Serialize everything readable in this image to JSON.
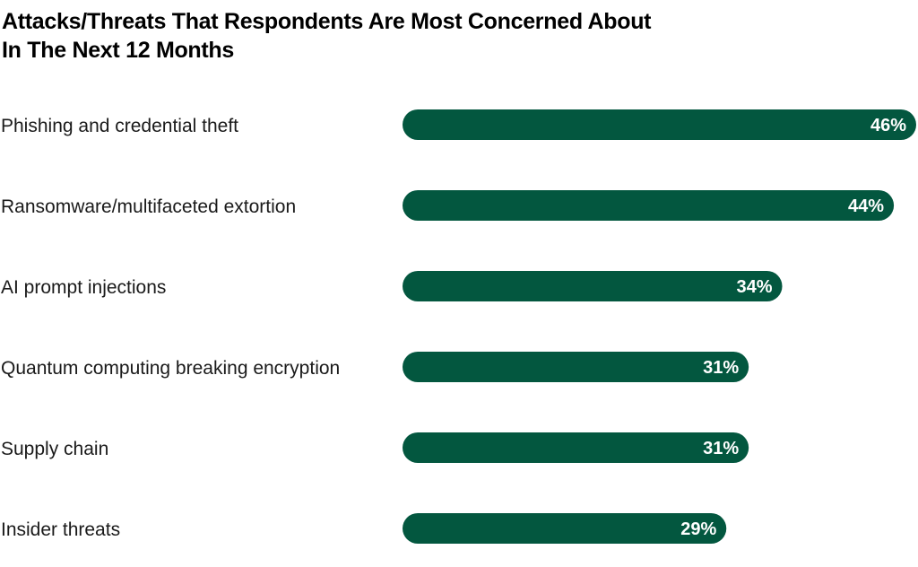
{
  "chart_data": {
    "type": "bar",
    "orientation": "horizontal",
    "title": "Attacks/Threats That Respondents Are Most Concerned About In The Next 12 Months",
    "title_lines": [
      "Attacks/Threats That Respondents Are Most Concerned About",
      "In The Next 12 Months"
    ],
    "categories": [
      "Phishing and credential theft",
      "Ransomware/multifaceted extortion",
      "AI prompt injections",
      "Quantum computing breaking encryption",
      "Supply chain",
      "Insider threats"
    ],
    "values": [
      46,
      44,
      34,
      31,
      31,
      29
    ],
    "value_labels": [
      "46%",
      "44%",
      "34%",
      "31%",
      "31%",
      "29%"
    ],
    "unit": "%",
    "xlabel": "",
    "ylabel": "",
    "xlim": [
      0,
      46
    ],
    "grid": false,
    "legend": "none",
    "bar_color": "#03573f"
  }
}
